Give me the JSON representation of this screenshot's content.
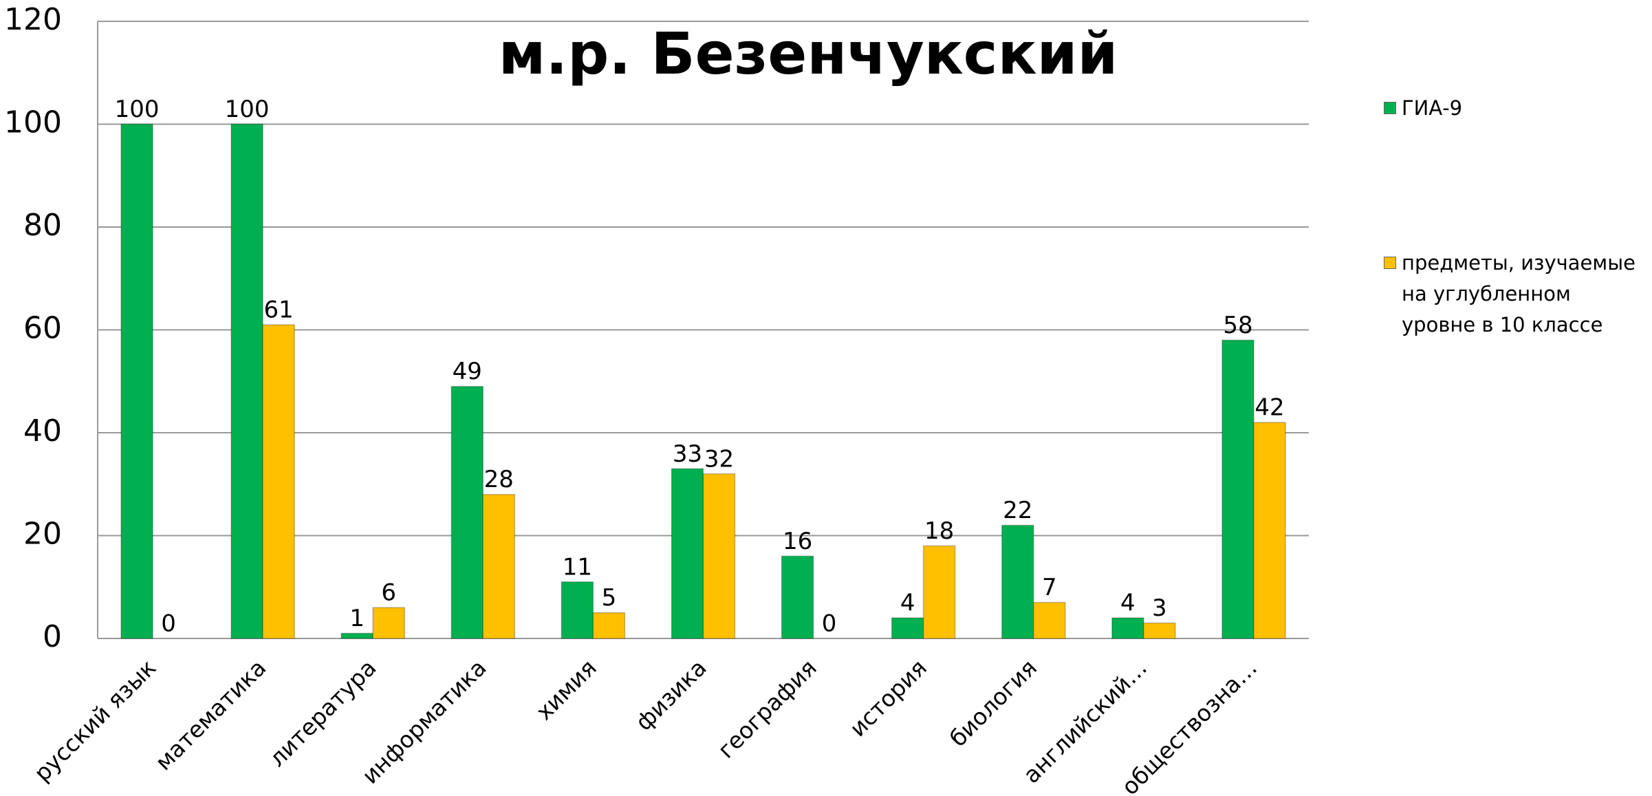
{
  "chart_data": {
    "type": "bar",
    "title": "м.р. Безенчукский",
    "categories": [
      "русский язык",
      "математика",
      "литература",
      "информатика",
      "химия",
      "физика",
      "география",
      "история",
      "биология",
      "английский…",
      "обществозна…"
    ],
    "series": [
      {
        "name": "ГИА-9",
        "color": "#00b050",
        "values": [
          100,
          100,
          1,
          49,
          11,
          33,
          16,
          4,
          22,
          4,
          58
        ]
      },
      {
        "name": "предметы, изучаемые на углубленном уровне в 10 классе",
        "color": "#ffc000",
        "values": [
          0,
          61,
          6,
          28,
          5,
          32,
          0,
          18,
          7,
          3,
          42
        ]
      }
    ],
    "ylim": [
      0,
      120
    ],
    "yticks": [
      0,
      20,
      40,
      60,
      80,
      100,
      120
    ],
    "grid": true,
    "legend": "right"
  }
}
